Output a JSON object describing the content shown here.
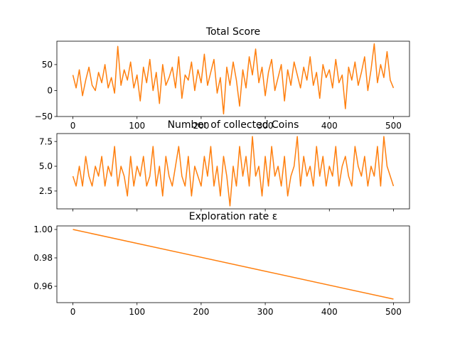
{
  "chart_data": [
    {
      "type": "line",
      "title": "Total Score",
      "xlabel": "",
      "ylabel": "",
      "xlim": [
        -25,
        525
      ],
      "ylim": [
        -50,
        95
      ],
      "xticks": [
        0,
        100,
        200,
        300,
        400,
        500
      ],
      "yticks": [
        -50,
        0,
        50
      ],
      "xtick_labels": [
        "0",
        "100",
        "200",
        "300",
        "400",
        "500"
      ],
      "ytick_labels": [
        "−50",
        "0",
        "50"
      ],
      "grid": false,
      "series": [
        {
          "color": "#ff7f0e",
          "x": [
            0,
            5,
            10,
            15,
            20,
            25,
            30,
            35,
            40,
            45,
            50,
            55,
            60,
            65,
            70,
            75,
            80,
            85,
            90,
            95,
            100,
            105,
            110,
            115,
            120,
            125,
            130,
            135,
            140,
            145,
            150,
            155,
            160,
            165,
            170,
            175,
            180,
            185,
            190,
            195,
            200,
            205,
            210,
            215,
            220,
            225,
            230,
            235,
            240,
            245,
            250,
            255,
            260,
            265,
            270,
            275,
            280,
            285,
            290,
            295,
            300,
            305,
            310,
            315,
            320,
            325,
            330,
            335,
            340,
            345,
            350,
            355,
            360,
            365,
            370,
            375,
            380,
            385,
            390,
            395,
            400,
            405,
            410,
            415,
            420,
            425,
            430,
            435,
            440,
            445,
            450,
            455,
            460,
            465,
            470,
            475,
            480,
            485,
            490,
            495,
            500
          ],
          "y": [
            30,
            5,
            40,
            -10,
            20,
            45,
            10,
            0,
            35,
            15,
            50,
            5,
            25,
            -5,
            85,
            10,
            40,
            20,
            55,
            5,
            30,
            -20,
            45,
            15,
            60,
            0,
            35,
            -25,
            50,
            10,
            25,
            45,
            5,
            65,
            -15,
            30,
            20,
            55,
            0,
            40,
            15,
            70,
            10,
            35,
            60,
            -5,
            25,
            -45,
            45,
            10,
            55,
            20,
            -30,
            40,
            5,
            65,
            30,
            80,
            15,
            45,
            -10,
            35,
            60,
            0,
            25,
            50,
            -20,
            40,
            10,
            55,
            30,
            5,
            45,
            20,
            65,
            10,
            35,
            -15,
            50,
            25,
            40,
            5,
            60,
            15,
            30,
            -35,
            45,
            20,
            55,
            10,
            35,
            65,
            0,
            40,
            90,
            15,
            50,
            25,
            75,
            20,
            5
          ]
        }
      ]
    },
    {
      "type": "line",
      "title": "Number of collected Coins",
      "xlabel": "",
      "ylabel": "",
      "xlim": [
        -25,
        525
      ],
      "ylim": [
        0.7,
        8.3
      ],
      "xticks": [
        0,
        100,
        200,
        300,
        400,
        500
      ],
      "yticks": [
        2.5,
        5.0,
        7.5
      ],
      "ytick_labels": [
        "2.5",
        "5.0",
        "7.5"
      ],
      "grid": false,
      "series": [
        {
          "color": "#ff7f0e",
          "x": [
            0,
            5,
            10,
            15,
            20,
            25,
            30,
            35,
            40,
            45,
            50,
            55,
            60,
            65,
            70,
            75,
            80,
            85,
            90,
            95,
            100,
            105,
            110,
            115,
            120,
            125,
            130,
            135,
            140,
            145,
            150,
            155,
            160,
            165,
            170,
            175,
            180,
            185,
            190,
            195,
            200,
            205,
            210,
            215,
            220,
            225,
            230,
            235,
            240,
            245,
            250,
            255,
            260,
            265,
            270,
            275,
            280,
            285,
            290,
            295,
            300,
            305,
            310,
            315,
            320,
            325,
            330,
            335,
            340,
            345,
            350,
            355,
            360,
            365,
            370,
            375,
            380,
            385,
            390,
            395,
            400,
            405,
            410,
            415,
            420,
            425,
            430,
            435,
            440,
            445,
            450,
            455,
            460,
            465,
            470,
            475,
            480,
            485,
            490,
            495,
            500
          ],
          "y": [
            4,
            3,
            5,
            3,
            6,
            4,
            3,
            5,
            4,
            6,
            3,
            5,
            4,
            7,
            3,
            5,
            4,
            2,
            6,
            3,
            5,
            4,
            6,
            3,
            4,
            7,
            3,
            5,
            2,
            6,
            4,
            3,
            5,
            7,
            4,
            3,
            6,
            2,
            5,
            4,
            3,
            6,
            4,
            7,
            3,
            5,
            2,
            6,
            4,
            1,
            5,
            3,
            7,
            4,
            6,
            3,
            8,
            4,
            5,
            2,
            6,
            3,
            7,
            4,
            5,
            3,
            6,
            2,
            4,
            5,
            8,
            3,
            6,
            4,
            5,
            3,
            7,
            4,
            6,
            3,
            5,
            4,
            7,
            3,
            5,
            6,
            4,
            3,
            7,
            5,
            4,
            6,
            3,
            5,
            4,
            7,
            3,
            8,
            5,
            4,
            3
          ]
        }
      ]
    },
    {
      "type": "line",
      "title": "Exploration rate ε",
      "xlabel": "",
      "ylabel": "",
      "xlim": [
        -25,
        525
      ],
      "ylim": [
        0.9485,
        1.0025
      ],
      "xticks": [
        0,
        100,
        200,
        300,
        400,
        500
      ],
      "yticks": [
        0.96,
        0.98,
        1.0
      ],
      "xtick_labels": [
        "0",
        "100",
        "200",
        "300",
        "400",
        "500"
      ],
      "ytick_labels": [
        "0.96",
        "0.98",
        "1.00"
      ],
      "grid": false,
      "series": [
        {
          "color": "#ff7f0e",
          "x": [
            0,
            500
          ],
          "y": [
            1.0,
            0.951
          ]
        }
      ]
    }
  ]
}
